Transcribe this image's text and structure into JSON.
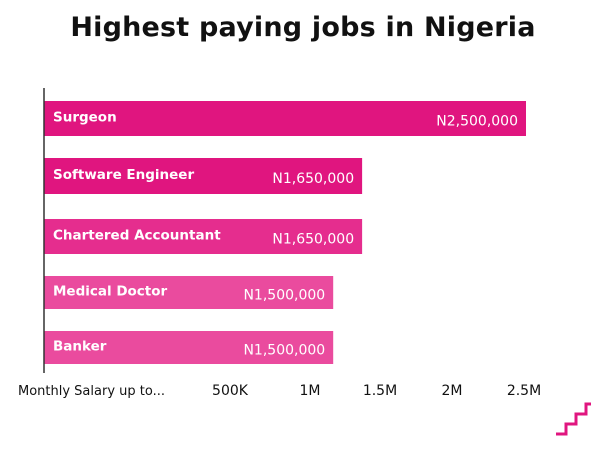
{
  "colors": {
    "bar_dark": "#e0157f",
    "bar_mid": "#e52d8e",
    "bar_light": "#ea4b9e",
    "axis": "#333333",
    "logo": "#e0157f"
  },
  "chart_data": {
    "type": "bar",
    "orientation": "horizontal",
    "title": "Highest paying jobs in Nigeria",
    "xlabel": "Monthly Salary up to...",
    "categories": [
      "Surgeon",
      "Software Engineer",
      "Chartered Accountant",
      "Medical Doctor",
      "Banker"
    ],
    "values": [
      2500000,
      1650000,
      1650000,
      1500000,
      1500000
    ],
    "value_labels": [
      "N2,500,000",
      "N1,650,000",
      "N1,650,000",
      "N1,500,000",
      "N1,500,000"
    ],
    "x_ticks": [
      {
        "value": 500000,
        "label": "500K"
      },
      {
        "value": 1000000,
        "label": "1M"
      },
      {
        "value": 1500000,
        "label": "1.5M"
      },
      {
        "value": 2000000,
        "label": "2M"
      },
      {
        "value": 2500000,
        "label": "2.5M"
      }
    ],
    "xlim": [
      0,
      2500000
    ],
    "grid": false,
    "legend": "none"
  },
  "logo": {
    "icon": "stairs-icon"
  }
}
